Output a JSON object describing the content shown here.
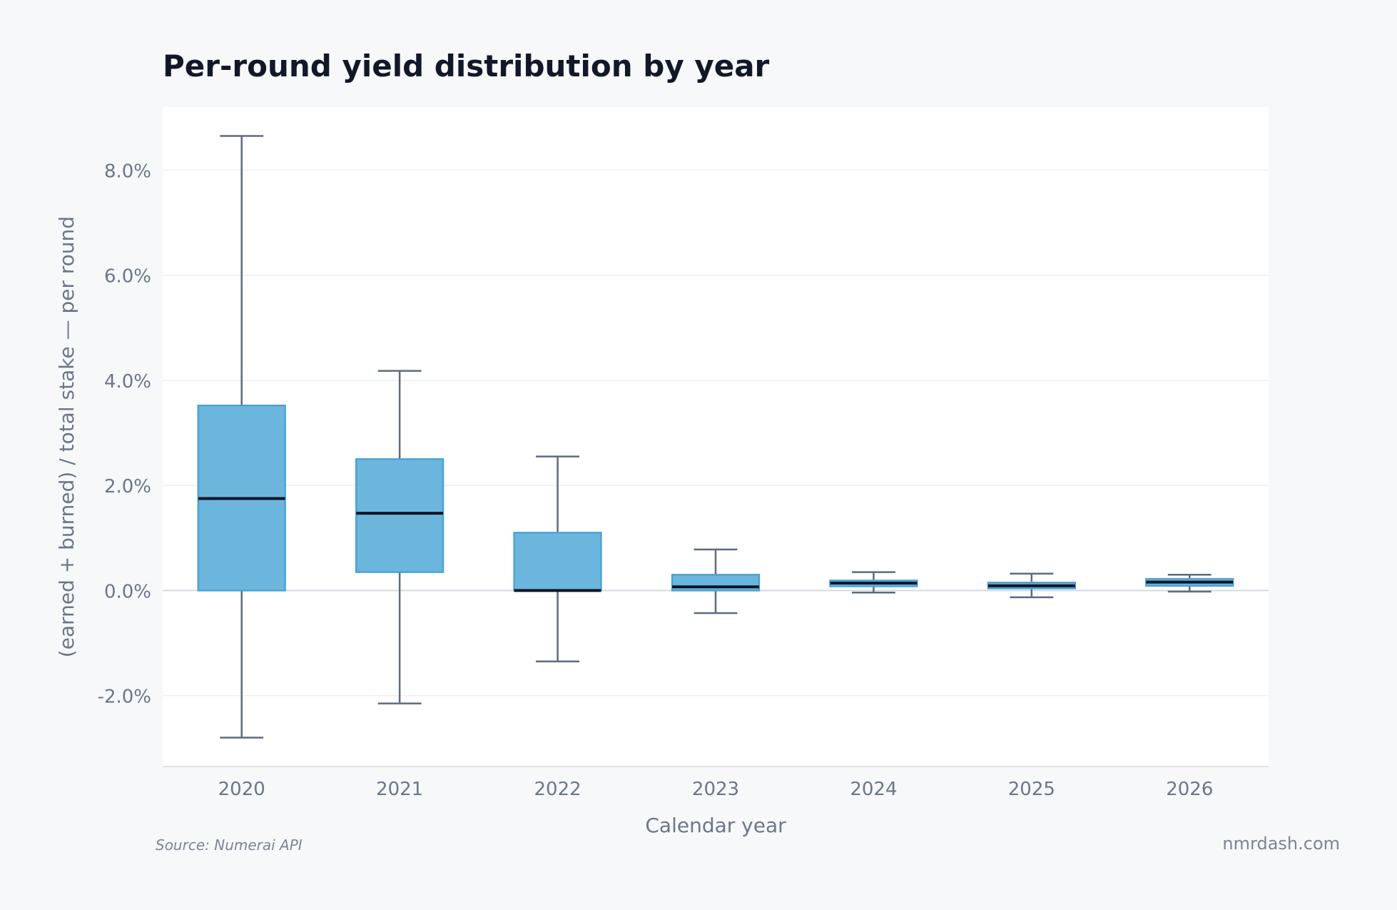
{
  "source_note": "Source: Numerai API",
  "site_credit": "nmrdash.com",
  "colors": {
    "background": "#f7f8fa",
    "plot_background": "#ffffff",
    "box_fill": "#6cb6dd",
    "box_edge": "#4aa3d3",
    "median": "#0b1424",
    "whisker": "#5e6a7e",
    "text_muted": "#6b7789",
    "grid": "#eceff3",
    "zero_line": "#d5dae1"
  },
  "chart_data": {
    "type": "box",
    "title": "Per-round yield distribution by year",
    "xlabel": "Calendar year",
    "ylabel": "(earned + burned) / total stake — per round",
    "categories": [
      "2020",
      "2021",
      "2022",
      "2023",
      "2024",
      "2025",
      "2026"
    ],
    "ylim": [
      -3.35,
      9.2
    ],
    "y_ticks": [
      -2.0,
      0.0,
      2.0,
      4.0,
      6.0,
      8.0
    ],
    "y_tick_labels": [
      "-2.0%",
      "0.0%",
      "2.0%",
      "4.0%",
      "6.0%",
      "8.0%"
    ],
    "grid": true,
    "boxes": [
      {
        "year": "2020",
        "whisker_low": -2.8,
        "q1": 0.0,
        "median": 1.75,
        "q3": 3.52,
        "whisker_high": 8.65
      },
      {
        "year": "2021",
        "whisker_low": -2.15,
        "q1": 0.35,
        "median": 1.47,
        "q3": 2.5,
        "whisker_high": 4.18
      },
      {
        "year": "2022",
        "whisker_low": -1.35,
        "q1": 0.0,
        "median": 0.0,
        "q3": 1.1,
        "whisker_high": 2.55
      },
      {
        "year": "2023",
        "whisker_low": -0.43,
        "q1": 0.0,
        "median": 0.07,
        "q3": 0.3,
        "whisker_high": 0.78
      },
      {
        "year": "2024",
        "whisker_low": -0.04,
        "q1": 0.08,
        "median": 0.14,
        "q3": 0.19,
        "whisker_high": 0.35
      },
      {
        "year": "2025",
        "whisker_low": -0.13,
        "q1": 0.04,
        "median": 0.09,
        "q3": 0.15,
        "whisker_high": 0.32
      },
      {
        "year": "2026",
        "whisker_low": -0.02,
        "q1": 0.09,
        "median": 0.16,
        "q3": 0.22,
        "whisker_high": 0.3
      }
    ]
  }
}
